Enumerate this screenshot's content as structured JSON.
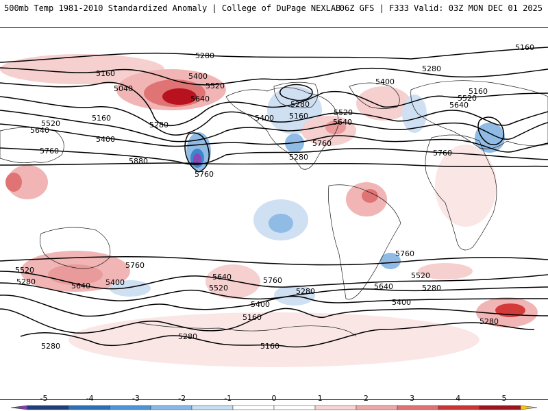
{
  "header": {
    "title_left": "500mb Temp 1981-2010 Standardized Anomaly | College of DuPage NEXLAB",
    "title_right": "06Z GFS | F333 Valid: 03Z MON DEC 01 2025"
  },
  "map": {
    "contour_labels": [
      "5280",
      "5160",
      "5160",
      "5400",
      "5520",
      "5040",
      "5640",
      "5280",
      "5160",
      "5520",
      "5640",
      "5400",
      "5760",
      "5880",
      "5760",
      "5400",
      "5160",
      "5280",
      "5520",
      "5640",
      "5760",
      "5280",
      "5400",
      "5520",
      "5640",
      "5160",
      "5760",
      "5760",
      "5520",
      "5280",
      "5640",
      "5400",
      "5760",
      "5640",
      "5520",
      "5400",
      "5280",
      "5160",
      "5280",
      "5640",
      "5520",
      "5400",
      "5280",
      "5760",
      "5280",
      "5280",
      "5160",
      "5280"
    ],
    "colors": {
      "contour": "#000000",
      "land": "#1a1a1a",
      "warm_light": "#f6cfcf",
      "warm_mid": "#e99a9a",
      "warm_strong": "#d33a3a",
      "warm_max": "#a3121c",
      "cold_light": "#cfe0f3",
      "cold_mid": "#8fbbe5",
      "cold_strong": "#3c86cc",
      "cold_max": "#8848b8"
    }
  },
  "colorbar": {
    "ticks": [
      "-5",
      "-4",
      "-3",
      "-2",
      "-1",
      "0",
      "1",
      "2",
      "3",
      "4",
      "5"
    ],
    "segment_colors": [
      "#7e3fa6",
      "#1f3f7a",
      "#2f6fb3",
      "#4c94d8",
      "#87b8e6",
      "#c6ddf2",
      "#ffffff",
      "#ffffff",
      "#f7d4d4",
      "#eda9a9",
      "#df7272",
      "#c83636",
      "#9c141d",
      "#f2c419"
    ]
  }
}
